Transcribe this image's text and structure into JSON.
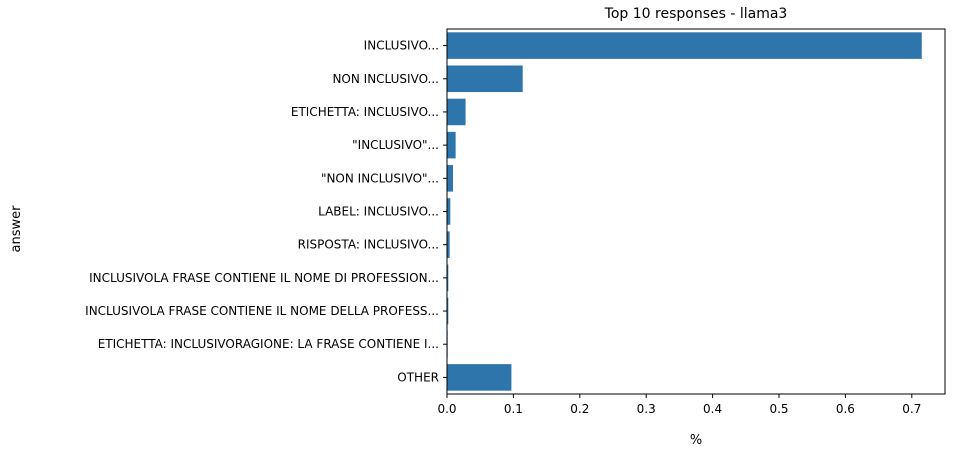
{
  "chart_data": {
    "type": "bar",
    "orientation": "horizontal",
    "title": "Top 10 responses - llama3",
    "xlabel": "%",
    "ylabel": "answer",
    "categories": [
      "INCLUSIVO...",
      "NON INCLUSIVO...",
      "ETICHETTA: INCLUSIVO...",
      "\"INCLUSIVO\"...",
      "\"NON INCLUSIVO\"...",
      "LABEL: INCLUSIVO...",
      "RISPOSTA: INCLUSIVO...",
      "INCLUSIVOLA FRASE CONTIENE IL NOME DI PROFESSION...",
      "INCLUSIVOLA FRASE CONTIENE IL NOME DELLA PROFESS...",
      "ETICHETTA: INCLUSIVORAGIONE: LA FRASE CONTIENE I...",
      "OTHER"
    ],
    "values": [
      0.715,
      0.114,
      0.028,
      0.013,
      0.009,
      0.005,
      0.004,
      0.002,
      0.002,
      0.001,
      0.097
    ],
    "xlim": [
      0,
      0.75
    ],
    "xticks": [
      0.0,
      0.1,
      0.2,
      0.3,
      0.4,
      0.5,
      0.6,
      0.7
    ],
    "xtick_labels": [
      "0.0",
      "0.1",
      "0.2",
      "0.3",
      "0.4",
      "0.5",
      "0.6",
      "0.7"
    ],
    "grid": false,
    "bar_color": "#2e75ab"
  }
}
